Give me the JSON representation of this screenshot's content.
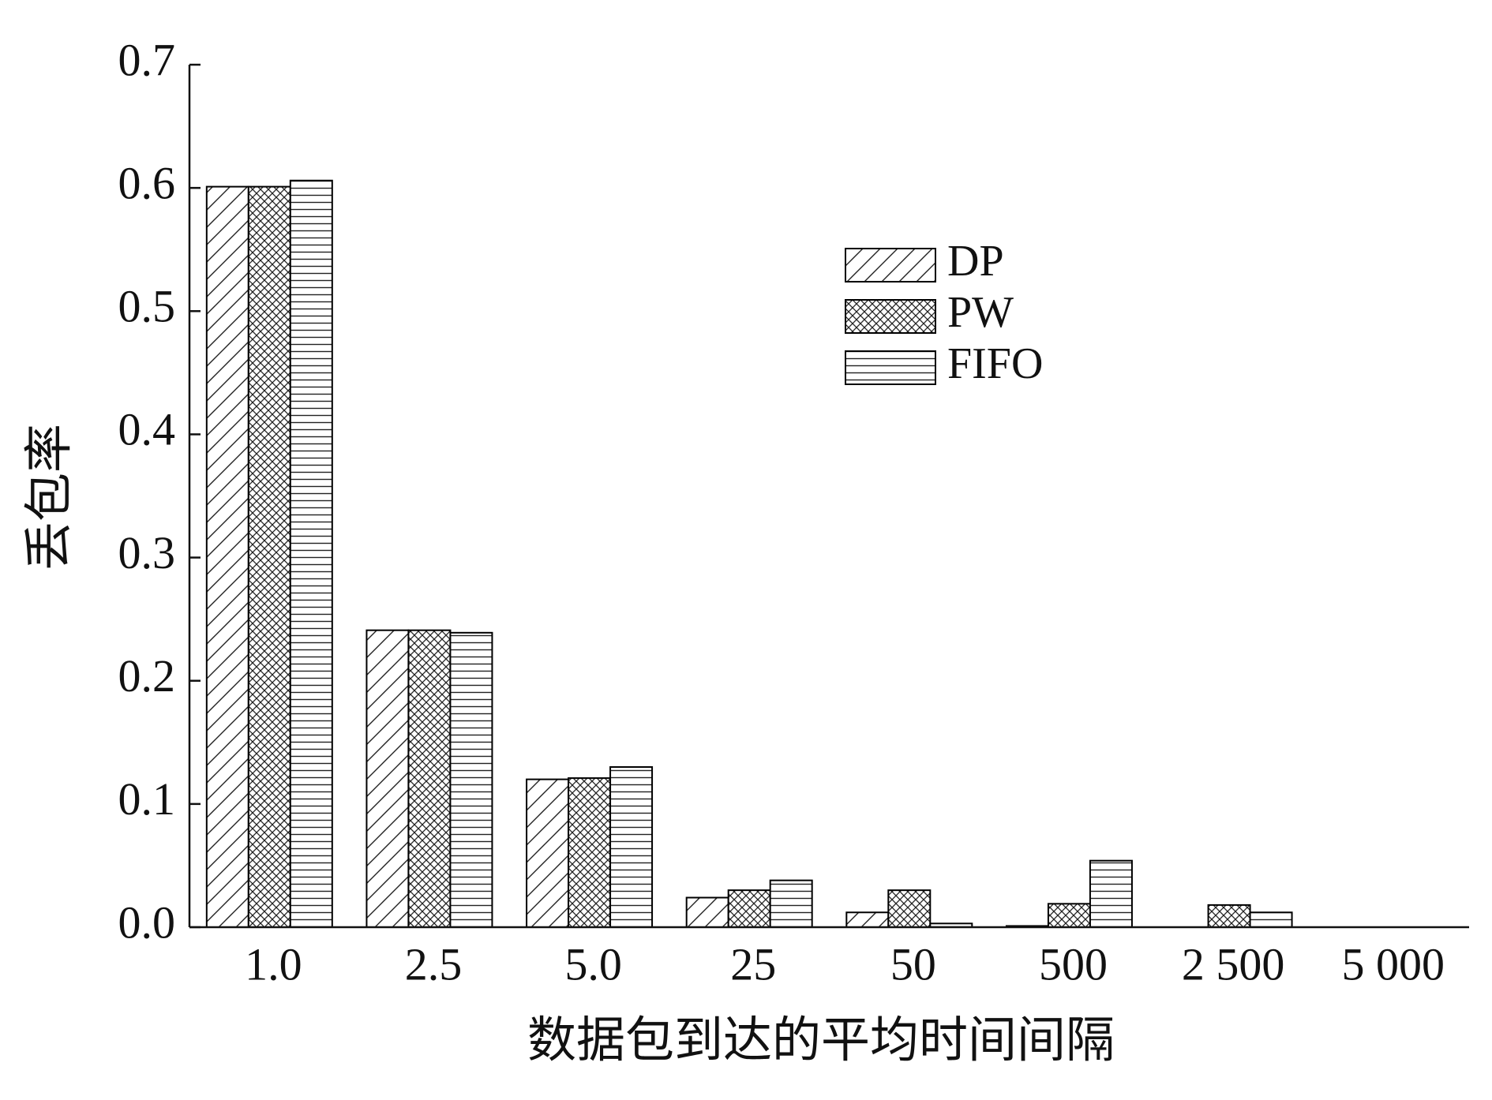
{
  "chart_data": {
    "type": "bar",
    "x_label": "数据包到达的平均时间间隔",
    "y_label": "丢包率",
    "categories": [
      "1.0",
      "2.5",
      "5.0",
      "25",
      "50",
      "500",
      "2 500",
      "5 000"
    ],
    "series": [
      {
        "name": "DP",
        "color": "#000000",
        "pattern": "diagonal",
        "values": [
          0.601,
          0.241,
          0.12,
          0.024,
          0.012,
          0.001,
          0,
          0
        ]
      },
      {
        "name": "PW",
        "color": "#000000",
        "pattern": "crosshatch",
        "values": [
          0.601,
          0.241,
          0.121,
          0.03,
          0.03,
          0.019,
          0.018,
          0
        ]
      },
      {
        "name": "FIFO",
        "color": "#000000",
        "pattern": "horizontal",
        "values": [
          0.606,
          0.239,
          0.13,
          0.038,
          0.003,
          0.054,
          0.012,
          0
        ]
      }
    ],
    "ylim": [
      0,
      0.7
    ],
    "yticks": [
      {
        "value": 0,
        "label": "0.0"
      },
      0.1,
      0.2,
      0.3,
      0.4,
      0.5,
      0.6,
      0.7
    ]
  }
}
